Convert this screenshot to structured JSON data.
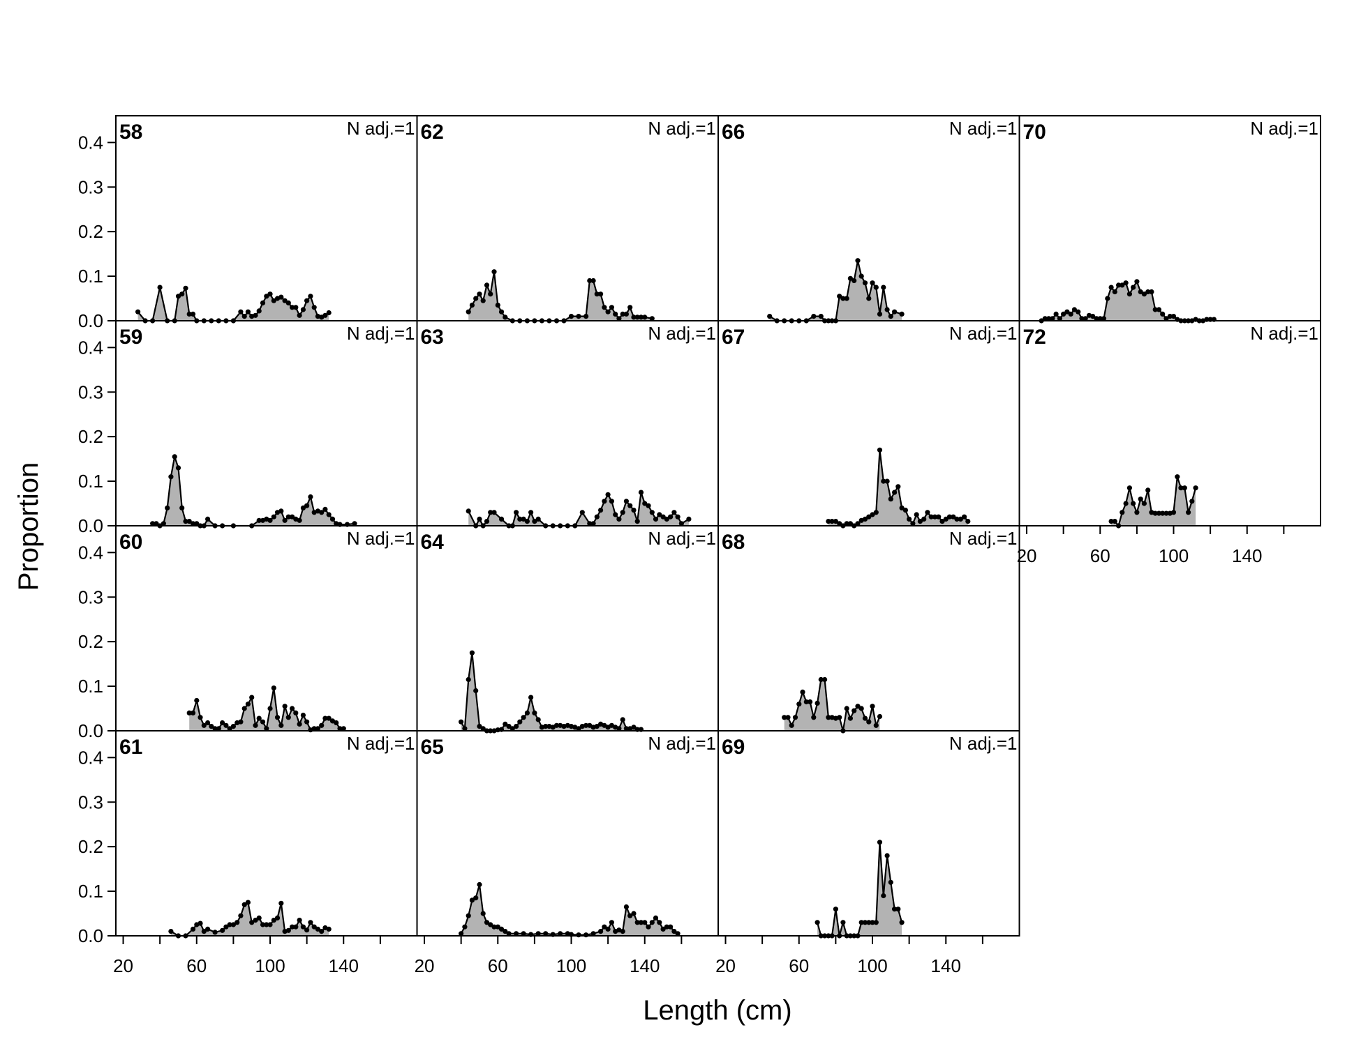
{
  "figure": {
    "xlabel": "Length (cm)",
    "ylabel": "Proportion",
    "yticks": [
      "0.0",
      "0.1",
      "0.2",
      "0.3",
      "0.4"
    ],
    "xticks": [
      "20",
      "60",
      "100",
      "140"
    ],
    "n_adj_label": "N adj.=1"
  },
  "chart_data": {
    "type": "area",
    "xlim": [
      16,
      180
    ],
    "ylim": [
      0,
      0.46
    ],
    "xlabel": "Length (cm)",
    "ylabel": "Proportion",
    "grid": false,
    "panels": [
      {
        "label": "58",
        "x": [
          28,
          32,
          36,
          40,
          44,
          48,
          50,
          52,
          54,
          56,
          58,
          60,
          64,
          68,
          72,
          76,
          80,
          84,
          86,
          88,
          90,
          92,
          94,
          96,
          98,
          100,
          102,
          104,
          106,
          108,
          110,
          112,
          114,
          116,
          118,
          120,
          122,
          124,
          126,
          128,
          130,
          132
        ],
        "values": [
          0.02,
          0,
          0,
          0.075,
          0,
          0,
          0.055,
          0.06,
          0.073,
          0.015,
          0.015,
          0,
          0,
          0,
          0,
          0,
          0,
          0.02,
          0.01,
          0.02,
          0.01,
          0.012,
          0.022,
          0.04,
          0.055,
          0.06,
          0.045,
          0.05,
          0.053,
          0.045,
          0.04,
          0.03,
          0.03,
          0.012,
          0.025,
          0.045,
          0.055,
          0.03,
          0.01,
          0.008,
          0.012,
          0.018
        ]
      },
      {
        "label": "59",
        "x": [
          36,
          38,
          40,
          42,
          44,
          46,
          48,
          50,
          52,
          54,
          56,
          58,
          60,
          62,
          64,
          66,
          70,
          74,
          80,
          90,
          94,
          96,
          98,
          100,
          102,
          104,
          106,
          108,
          110,
          112,
          114,
          116,
          118,
          120,
          122,
          124,
          126,
          128,
          130,
          132,
          134,
          136,
          138,
          142,
          146
        ],
        "values": [
          0.005,
          0.005,
          0,
          0.005,
          0.04,
          0.11,
          0.155,
          0.13,
          0.04,
          0.01,
          0.01,
          0.005,
          0.005,
          0,
          0,
          0.015,
          0,
          0,
          0,
          0,
          0.012,
          0.012,
          0.015,
          0.012,
          0.02,
          0.03,
          0.033,
          0.012,
          0.02,
          0.02,
          0.015,
          0.012,
          0.04,
          0.045,
          0.065,
          0.03,
          0.033,
          0.03,
          0.037,
          0.025,
          0.015,
          0.005,
          0.003,
          0.003,
          0.005
        ]
      },
      {
        "label": "60",
        "x": [
          56,
          58,
          60,
          62,
          64,
          66,
          68,
          70,
          72,
          74,
          76,
          78,
          80,
          82,
          84,
          86,
          88,
          90,
          92,
          94,
          96,
          98,
          100,
          102,
          104,
          106,
          108,
          110,
          112,
          114,
          116,
          118,
          120,
          122,
          124,
          126,
          128,
          130,
          132,
          134,
          136,
          138,
          140
        ],
        "values": [
          0.04,
          0.04,
          0.068,
          0.03,
          0.012,
          0.018,
          0.01,
          0.005,
          0.005,
          0.018,
          0.012,
          0.005,
          0.01,
          0.018,
          0.02,
          0.05,
          0.06,
          0.075,
          0.012,
          0.028,
          0.02,
          0.005,
          0.05,
          0.096,
          0.03,
          0.012,
          0.055,
          0.03,
          0.05,
          0.04,
          0.015,
          0.035,
          0.02,
          0.002,
          0.005,
          0.005,
          0.012,
          0.028,
          0.028,
          0.022,
          0.018,
          0.005,
          0.005
        ]
      },
      {
        "label": "61",
        "x": [
          46,
          50,
          54,
          58,
          60,
          62,
          64,
          66,
          70,
          74,
          76,
          78,
          80,
          82,
          84,
          86,
          88,
          90,
          92,
          94,
          96,
          98,
          100,
          102,
          104,
          106,
          108,
          110,
          112,
          114,
          116,
          118,
          120,
          122,
          124,
          126,
          128,
          130,
          132
        ],
        "values": [
          0.01,
          0,
          0,
          0.015,
          0.025,
          0.028,
          0.01,
          0.015,
          0.008,
          0.012,
          0.02,
          0.025,
          0.025,
          0.03,
          0.045,
          0.07,
          0.075,
          0.03,
          0.035,
          0.04,
          0.025,
          0.025,
          0.025,
          0.035,
          0.04,
          0.073,
          0.01,
          0.012,
          0.02,
          0.02,
          0.035,
          0.02,
          0.013,
          0.03,
          0.02,
          0.015,
          0.01,
          0.018,
          0.015
        ]
      },
      {
        "label": "62",
        "x": [
          44,
          46,
          48,
          50,
          52,
          54,
          56,
          58,
          60,
          62,
          64,
          68,
          72,
          76,
          80,
          84,
          88,
          92,
          96,
          100,
          104,
          108,
          110,
          112,
          114,
          116,
          118,
          120,
          122,
          124,
          126,
          128,
          130,
          132,
          134,
          136,
          138,
          140,
          144
        ],
        "values": [
          0.02,
          0.035,
          0.05,
          0.06,
          0.045,
          0.08,
          0.06,
          0.11,
          0.035,
          0.02,
          0.008,
          0,
          0,
          0,
          0,
          0,
          0,
          0,
          0,
          0.01,
          0.01,
          0.01,
          0.09,
          0.09,
          0.06,
          0.06,
          0.03,
          0.02,
          0.03,
          0.015,
          0.005,
          0.015,
          0.015,
          0.03,
          0.008,
          0.008,
          0.008,
          0.008,
          0.005
        ]
      },
      {
        "label": "63",
        "x": [
          44,
          48,
          50,
          52,
          54,
          56,
          58,
          62,
          66,
          68,
          70,
          72,
          74,
          76,
          78,
          80,
          82,
          86,
          90,
          94,
          98,
          102,
          106,
          110,
          112,
          114,
          116,
          118,
          120,
          122,
          124,
          126,
          128,
          130,
          132,
          134,
          136,
          138,
          140,
          142,
          144,
          146,
          148,
          150,
          152,
          154,
          156,
          158,
          160,
          164
        ],
        "values": [
          0.033,
          0,
          0.015,
          0,
          0.01,
          0.03,
          0.03,
          0.015,
          0,
          0,
          0.03,
          0.015,
          0.015,
          0.01,
          0.03,
          0.01,
          0.015,
          0,
          0,
          0,
          0,
          0,
          0.03,
          0.005,
          0.005,
          0.02,
          0.035,
          0.055,
          0.07,
          0.055,
          0.025,
          0.015,
          0.03,
          0.055,
          0.045,
          0.035,
          0.01,
          0.075,
          0.05,
          0.045,
          0.03,
          0.015,
          0.025,
          0.02,
          0.015,
          0.02,
          0.03,
          0.02,
          0.005,
          0.015
        ]
      },
      {
        "label": "64",
        "x": [
          40,
          42,
          44,
          46,
          48,
          50,
          52,
          54,
          56,
          58,
          60,
          62,
          64,
          66,
          68,
          70,
          72,
          74,
          76,
          78,
          80,
          82,
          84,
          86,
          88,
          90,
          92,
          94,
          96,
          98,
          100,
          102,
          104,
          106,
          108,
          110,
          112,
          114,
          116,
          118,
          120,
          122,
          124,
          126,
          128,
          130,
          132,
          134,
          136,
          138
        ],
        "values": [
          0.02,
          0.005,
          0.115,
          0.175,
          0.09,
          0.01,
          0.005,
          0,
          0,
          0,
          0.002,
          0.003,
          0.015,
          0.01,
          0.005,
          0.01,
          0.02,
          0.03,
          0.04,
          0.075,
          0.04,
          0.025,
          0.008,
          0.01,
          0.01,
          0.008,
          0.012,
          0.012,
          0.01,
          0.012,
          0.01,
          0.008,
          0.005,
          0.01,
          0.012,
          0.012,
          0.008,
          0.01,
          0.015,
          0.012,
          0.008,
          0.012,
          0.008,
          0.005,
          0.025,
          0.005,
          0.005,
          0.008,
          0.003,
          0.003
        ]
      },
      {
        "label": "65",
        "x": [
          40,
          42,
          44,
          46,
          48,
          50,
          52,
          54,
          56,
          58,
          60,
          62,
          64,
          66,
          70,
          74,
          78,
          82,
          86,
          90,
          94,
          98,
          100,
          104,
          108,
          112,
          116,
          118,
          120,
          122,
          124,
          126,
          128,
          130,
          132,
          134,
          136,
          138,
          140,
          142,
          144,
          146,
          148,
          150,
          152,
          154,
          156,
          158
        ],
        "values": [
          0.005,
          0.02,
          0.045,
          0.08,
          0.085,
          0.115,
          0.05,
          0.03,
          0.025,
          0.02,
          0.02,
          0.015,
          0.01,
          0.005,
          0.005,
          0.005,
          0.003,
          0.005,
          0.005,
          0.003,
          0.005,
          0.005,
          0.003,
          0.002,
          0.002,
          0.005,
          0.01,
          0.02,
          0.015,
          0.03,
          0.01,
          0.013,
          0.01,
          0.065,
          0.045,
          0.05,
          0.03,
          0.03,
          0.03,
          0.02,
          0.03,
          0.04,
          0.03,
          0.015,
          0.02,
          0.02,
          0.01,
          0.005
        ]
      },
      {
        "label": "66",
        "x": [
          44,
          48,
          52,
          56,
          60,
          64,
          68,
          72,
          74,
          76,
          78,
          80,
          82,
          84,
          86,
          88,
          90,
          92,
          94,
          96,
          98,
          100,
          102,
          104,
          106,
          108,
          110,
          112,
          116
        ],
        "values": [
          0.01,
          0,
          0,
          0,
          0,
          0,
          0.01,
          0.01,
          0,
          0,
          0,
          0,
          0.055,
          0.05,
          0.05,
          0.095,
          0.09,
          0.135,
          0.1,
          0.085,
          0.05,
          0.085,
          0.075,
          0.015,
          0.075,
          0.025,
          0.01,
          0.02,
          0.015
        ]
      },
      {
        "label": "67",
        "x": [
          76,
          78,
          80,
          82,
          84,
          86,
          88,
          90,
          92,
          94,
          96,
          98,
          100,
          102,
          104,
          106,
          108,
          110,
          112,
          114,
          116,
          118,
          120,
          122,
          124,
          126,
          128,
          130,
          132,
          134,
          136,
          138,
          140,
          142,
          144,
          146,
          148,
          150,
          152
        ],
        "values": [
          0.01,
          0.01,
          0.01,
          0.005,
          0,
          0.005,
          0.005,
          0,
          0.005,
          0.012,
          0.015,
          0.02,
          0.025,
          0.03,
          0.17,
          0.1,
          0.1,
          0.06,
          0.075,
          0.088,
          0.04,
          0.035,
          0.015,
          0.005,
          0.025,
          0.01,
          0.015,
          0.03,
          0.02,
          0.02,
          0.02,
          0.01,
          0.015,
          0.02,
          0.02,
          0.015,
          0.015,
          0.02,
          0.01
        ]
      },
      {
        "label": "68",
        "x": [
          52,
          54,
          56,
          58,
          60,
          62,
          64,
          66,
          68,
          70,
          72,
          74,
          76,
          78,
          80,
          82,
          84,
          86,
          88,
          90,
          92,
          94,
          96,
          98,
          100,
          102,
          104
        ],
        "values": [
          0.03,
          0.03,
          0.012,
          0.03,
          0.06,
          0.087,
          0.065,
          0.065,
          0.03,
          0.062,
          0.115,
          0.115,
          0.03,
          0.03,
          0.028,
          0.03,
          0,
          0.05,
          0.028,
          0.045,
          0.055,
          0.05,
          0.028,
          0.02,
          0.055,
          0.012,
          0.032
        ]
      },
      {
        "label": "69",
        "x": [
          70,
          72,
          74,
          76,
          78,
          80,
          82,
          84,
          86,
          88,
          90,
          92,
          94,
          96,
          98,
          100,
          102,
          104,
          106,
          108,
          110,
          112,
          114,
          116
        ],
        "values": [
          0.03,
          0,
          0,
          0,
          0,
          0.06,
          0,
          0.03,
          0,
          0,
          0,
          0,
          0.03,
          0.03,
          0.03,
          0.03,
          0.03,
          0.21,
          0.09,
          0.18,
          0.12,
          0.06,
          0.06,
          0.03
        ]
      },
      {
        "label": "70",
        "x": [
          28,
          30,
          32,
          34,
          36,
          38,
          40,
          42,
          44,
          46,
          48,
          50,
          52,
          54,
          56,
          58,
          60,
          62,
          64,
          66,
          68,
          70,
          72,
          74,
          76,
          78,
          80,
          82,
          84,
          86,
          88,
          90,
          92,
          94,
          96,
          98,
          100,
          102,
          104,
          106,
          108,
          110,
          112,
          114,
          116,
          118,
          120,
          122
        ],
        "values": [
          0,
          0.005,
          0.005,
          0.005,
          0.015,
          0.005,
          0.015,
          0.02,
          0.015,
          0.025,
          0.02,
          0.005,
          0.005,
          0.012,
          0.01,
          0.005,
          0.005,
          0.005,
          0.05,
          0.075,
          0.065,
          0.08,
          0.08,
          0.085,
          0.06,
          0.075,
          0.088,
          0.065,
          0.06,
          0.065,
          0.065,
          0.025,
          0.025,
          0.015,
          0.005,
          0.01,
          0.01,
          0.003,
          0,
          0,
          0,
          0,
          0.003,
          0,
          0,
          0.003,
          0.003,
          0.003
        ]
      },
      {
        "label": "72",
        "x": [
          66,
          68,
          70,
          72,
          74,
          76,
          78,
          80,
          82,
          84,
          86,
          88,
          90,
          92,
          94,
          96,
          98,
          100,
          102,
          104,
          106,
          108,
          110,
          112
        ],
        "values": [
          0.01,
          0.01,
          0,
          0.03,
          0.05,
          0.085,
          0.05,
          0.03,
          0.06,
          0.05,
          0.08,
          0.03,
          0.028,
          0.028,
          0.028,
          0.028,
          0.028,
          0.03,
          0.11,
          0.085,
          0.085,
          0.03,
          0.055,
          0.085
        ]
      }
    ]
  }
}
